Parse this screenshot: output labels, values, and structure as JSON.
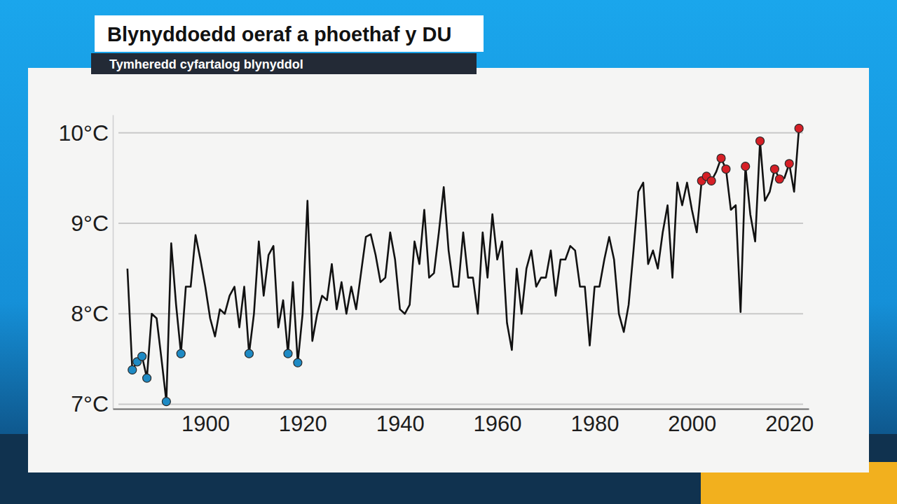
{
  "chart_data": {
    "type": "line",
    "title": "Blynyddoedd oeraf a phoethaf y DU",
    "subtitle": "Tymheredd cyfartalog blynyddol",
    "grid": true,
    "xlim": [
      1881,
      2024
    ],
    "xticks": [
      1900,
      1920,
      1940,
      1960,
      1980,
      2000,
      2020
    ],
    "ylim": [
      6.95,
      10.2
    ],
    "yticks": [
      {
        "value": 7,
        "label": "7°C"
      },
      {
        "value": 8,
        "label": "8°C"
      },
      {
        "value": 9,
        "label": "9°C"
      },
      {
        "value": 10,
        "label": "10°C"
      }
    ],
    "series": [
      {
        "type": "line",
        "color": "#111111",
        "line_style": "solid",
        "marker": "none",
        "x": [
          1884,
          1885,
          1886,
          1887,
          1888,
          1889,
          1890,
          1891,
          1892,
          1893,
          1894,
          1895,
          1896,
          1897,
          1898,
          1899,
          1900,
          1901,
          1902,
          1903,
          1904,
          1905,
          1906,
          1907,
          1908,
          1909,
          1910,
          1911,
          1912,
          1913,
          1914,
          1915,
          1916,
          1917,
          1918,
          1919,
          1920,
          1921,
          1922,
          1923,
          1924,
          1925,
          1926,
          1927,
          1928,
          1929,
          1930,
          1931,
          1932,
          1933,
          1934,
          1935,
          1936,
          1937,
          1938,
          1939,
          1940,
          1941,
          1942,
          1943,
          1944,
          1945,
          1946,
          1947,
          1948,
          1949,
          1950,
          1951,
          1952,
          1953,
          1954,
          1955,
          1956,
          1957,
          1958,
          1959,
          1960,
          1961,
          1962,
          1963,
          1964,
          1965,
          1966,
          1967,
          1968,
          1969,
          1970,
          1971,
          1972,
          1973,
          1974,
          1975,
          1976,
          1977,
          1978,
          1979,
          1980,
          1981,
          1982,
          1983,
          1984,
          1985,
          1986,
          1987,
          1988,
          1989,
          1990,
          1991,
          1992,
          1993,
          1994,
          1995,
          1996,
          1997,
          1998,
          1999,
          2000,
          2001,
          2002,
          2003,
          2004,
          2005,
          2006,
          2007,
          2008,
          2009,
          2010,
          2011,
          2012,
          2013,
          2014,
          2015,
          2016,
          2017,
          2018,
          2019,
          2020,
          2021,
          2022
        ],
        "values": [
          8.5,
          7.38,
          7.47,
          7.53,
          7.29,
          8.0,
          7.95,
          7.5,
          7.03,
          8.78,
          8.1,
          7.56,
          8.3,
          8.3,
          8.87,
          8.6,
          8.3,
          7.95,
          7.75,
          8.05,
          8.0,
          8.2,
          8.3,
          7.85,
          8.3,
          7.56,
          8.0,
          8.8,
          8.2,
          8.65,
          8.75,
          7.85,
          8.15,
          7.56,
          8.35,
          7.46,
          8.0,
          9.25,
          7.7,
          8.0,
          8.2,
          8.15,
          8.55,
          8.05,
          8.35,
          8.0,
          8.3,
          8.05,
          8.45,
          8.85,
          8.88,
          8.65,
          8.35,
          8.4,
          8.9,
          8.6,
          8.05,
          8.0,
          8.1,
          8.8,
          8.55,
          9.15,
          8.4,
          8.45,
          8.9,
          9.4,
          8.7,
          8.3,
          8.3,
          8.9,
          8.4,
          8.4,
          8.0,
          8.9,
          8.4,
          9.1,
          8.6,
          8.8,
          7.9,
          7.6,
          8.5,
          8.0,
          8.5,
          8.7,
          8.3,
          8.4,
          8.4,
          8.7,
          8.2,
          8.6,
          8.6,
          8.75,
          8.7,
          8.3,
          8.3,
          7.65,
          8.3,
          8.3,
          8.6,
          8.85,
          8.6,
          8.0,
          7.8,
          8.1,
          8.7,
          9.35,
          9.45,
          8.55,
          8.7,
          8.5,
          8.9,
          9.2,
          8.4,
          9.45,
          9.2,
          9.45,
          9.15,
          8.9,
          9.47,
          9.52,
          9.47,
          9.57,
          9.72,
          9.6,
          9.15,
          9.2,
          8.02,
          9.63,
          9.1,
          8.8,
          9.91,
          9.25,
          9.35,
          9.6,
          9.49,
          9.5,
          9.66,
          9.35,
          10.05
        ]
      },
      {
        "type": "scatter",
        "color": "#1e8ac4",
        "marker": "circle",
        "x": [
          1885,
          1886,
          1887,
          1888,
          1892,
          1895,
          1909,
          1917,
          1919
        ],
        "values": [
          7.38,
          7.47,
          7.53,
          7.29,
          7.03,
          7.56,
          7.56,
          7.56,
          7.46
        ]
      },
      {
        "type": "scatter",
        "color": "#d61f26",
        "marker": "circle",
        "x": [
          2002,
          2003,
          2004,
          2006,
          2007,
          2011,
          2014,
          2017,
          2018,
          2020,
          2022
        ],
        "values": [
          9.47,
          9.52,
          9.47,
          9.72,
          9.6,
          9.63,
          9.91,
          9.6,
          9.49,
          9.66,
          10.05
        ]
      }
    ]
  }
}
